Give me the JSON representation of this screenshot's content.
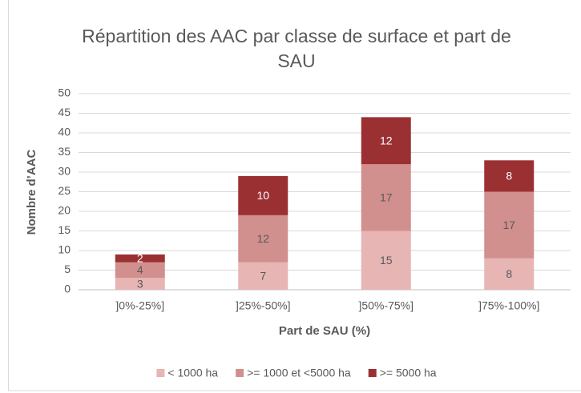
{
  "chart_data": {
    "type": "stacked_bar",
    "title": "Répartition des AAC par classe de surface et part de SAU",
    "x_label": "Part de SAU (%)",
    "y_label": "Nombre d’AAC",
    "categories": [
      "]0%-25%]",
      "]25%-50%]",
      "]50%-75%]",
      "]75%-100%]"
    ],
    "series": [
      {
        "name": "< 1000 ha",
        "color": "#e6b5b4",
        "values": [
          3,
          7,
          15,
          8
        ]
      },
      {
        "name": ">= 1000 et <5000 ha",
        "color": "#d18f8e",
        "values": [
          4,
          12,
          17,
          17
        ]
      },
      {
        "name": ">= 5000 ha",
        "color": "#9b3033",
        "values": [
          2,
          10,
          12,
          8
        ]
      }
    ],
    "ylim": [
      0,
      50
    ],
    "yticks": [
      0,
      5,
      10,
      15,
      20,
      25,
      30,
      35,
      40,
      45,
      50
    ],
    "grid": true,
    "legend": "bottom"
  }
}
